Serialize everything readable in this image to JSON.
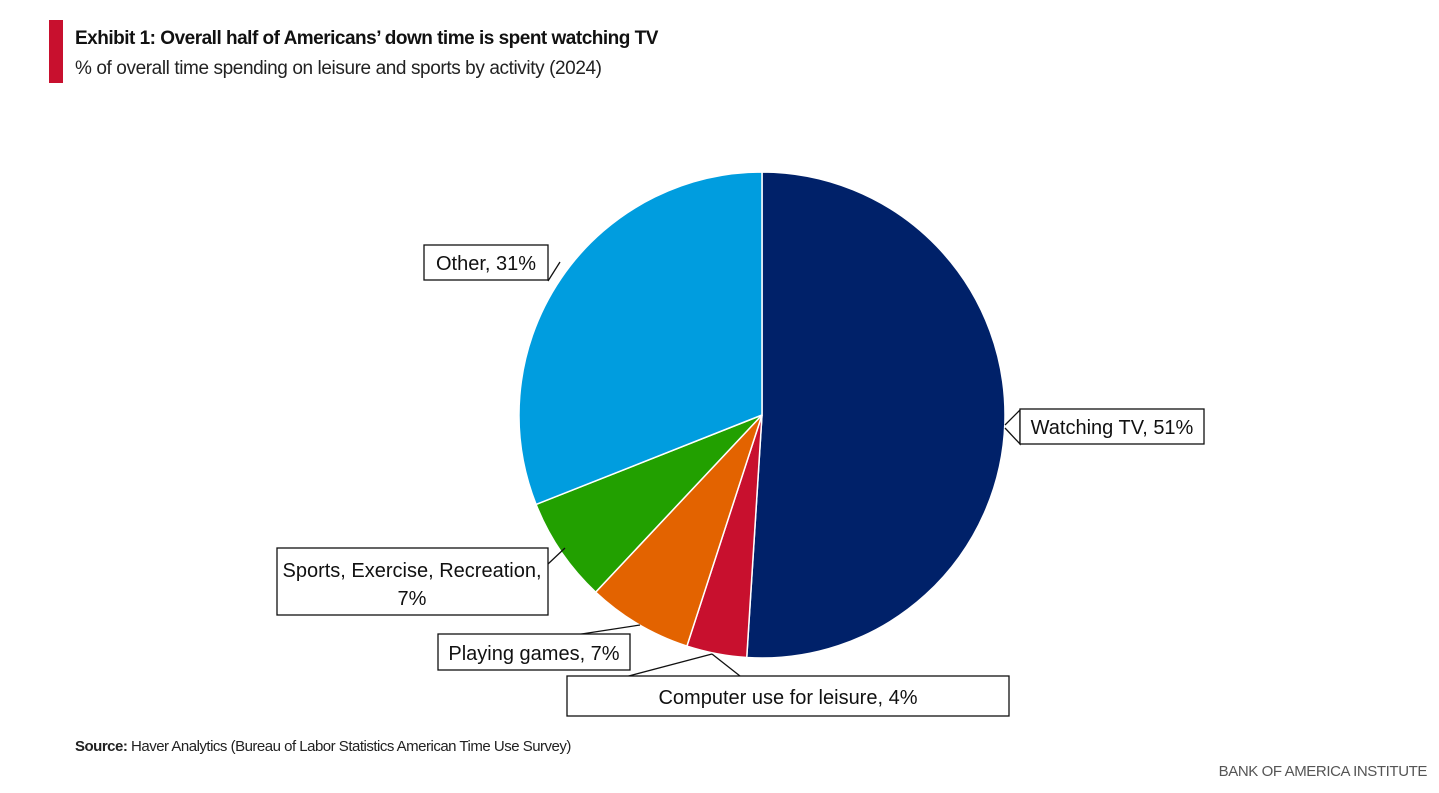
{
  "header": {
    "title": "Exhibit 1: Overall half of Americans’ down time is spent watching TV",
    "subtitle": "% of overall time spending on leisure and sports by activity (2024)"
  },
  "chart_data": {
    "type": "pie",
    "title": "Exhibit 1: Overall half of Americans’ down time is spent watching TV",
    "subtitle": "% of overall time spending on leisure and sports by activity (2024)",
    "slices": [
      {
        "name": "Watching TV",
        "value": 51,
        "label": "Watching TV, 51%",
        "color": "#002169"
      },
      {
        "name": "Computer use for leisure",
        "value": 4,
        "label": "Computer use for leisure, 4%",
        "color": "#c8102e"
      },
      {
        "name": "Playing games",
        "value": 7,
        "label": "Playing games, 7%",
        "color": "#e36300"
      },
      {
        "name": "Sports, Exercise, Recreation",
        "value": 7,
        "label_lines": [
          "Sports, Exercise, Recreation,",
          "7%"
        ],
        "color": "#22a000"
      },
      {
        "name": "Other",
        "value": 31,
        "label": "Other, 31%",
        "color": "#009ddf"
      }
    ],
    "start": "top",
    "direction": "clockwise"
  },
  "footer": {
    "source_label": "Source:",
    "source_text": " Haver Analytics (Bureau of Labor Statistics American Time Use Survey)",
    "brand": "BANK OF AMERICA INSTITUTE"
  },
  "colors": {
    "accent": "#c8102e"
  }
}
